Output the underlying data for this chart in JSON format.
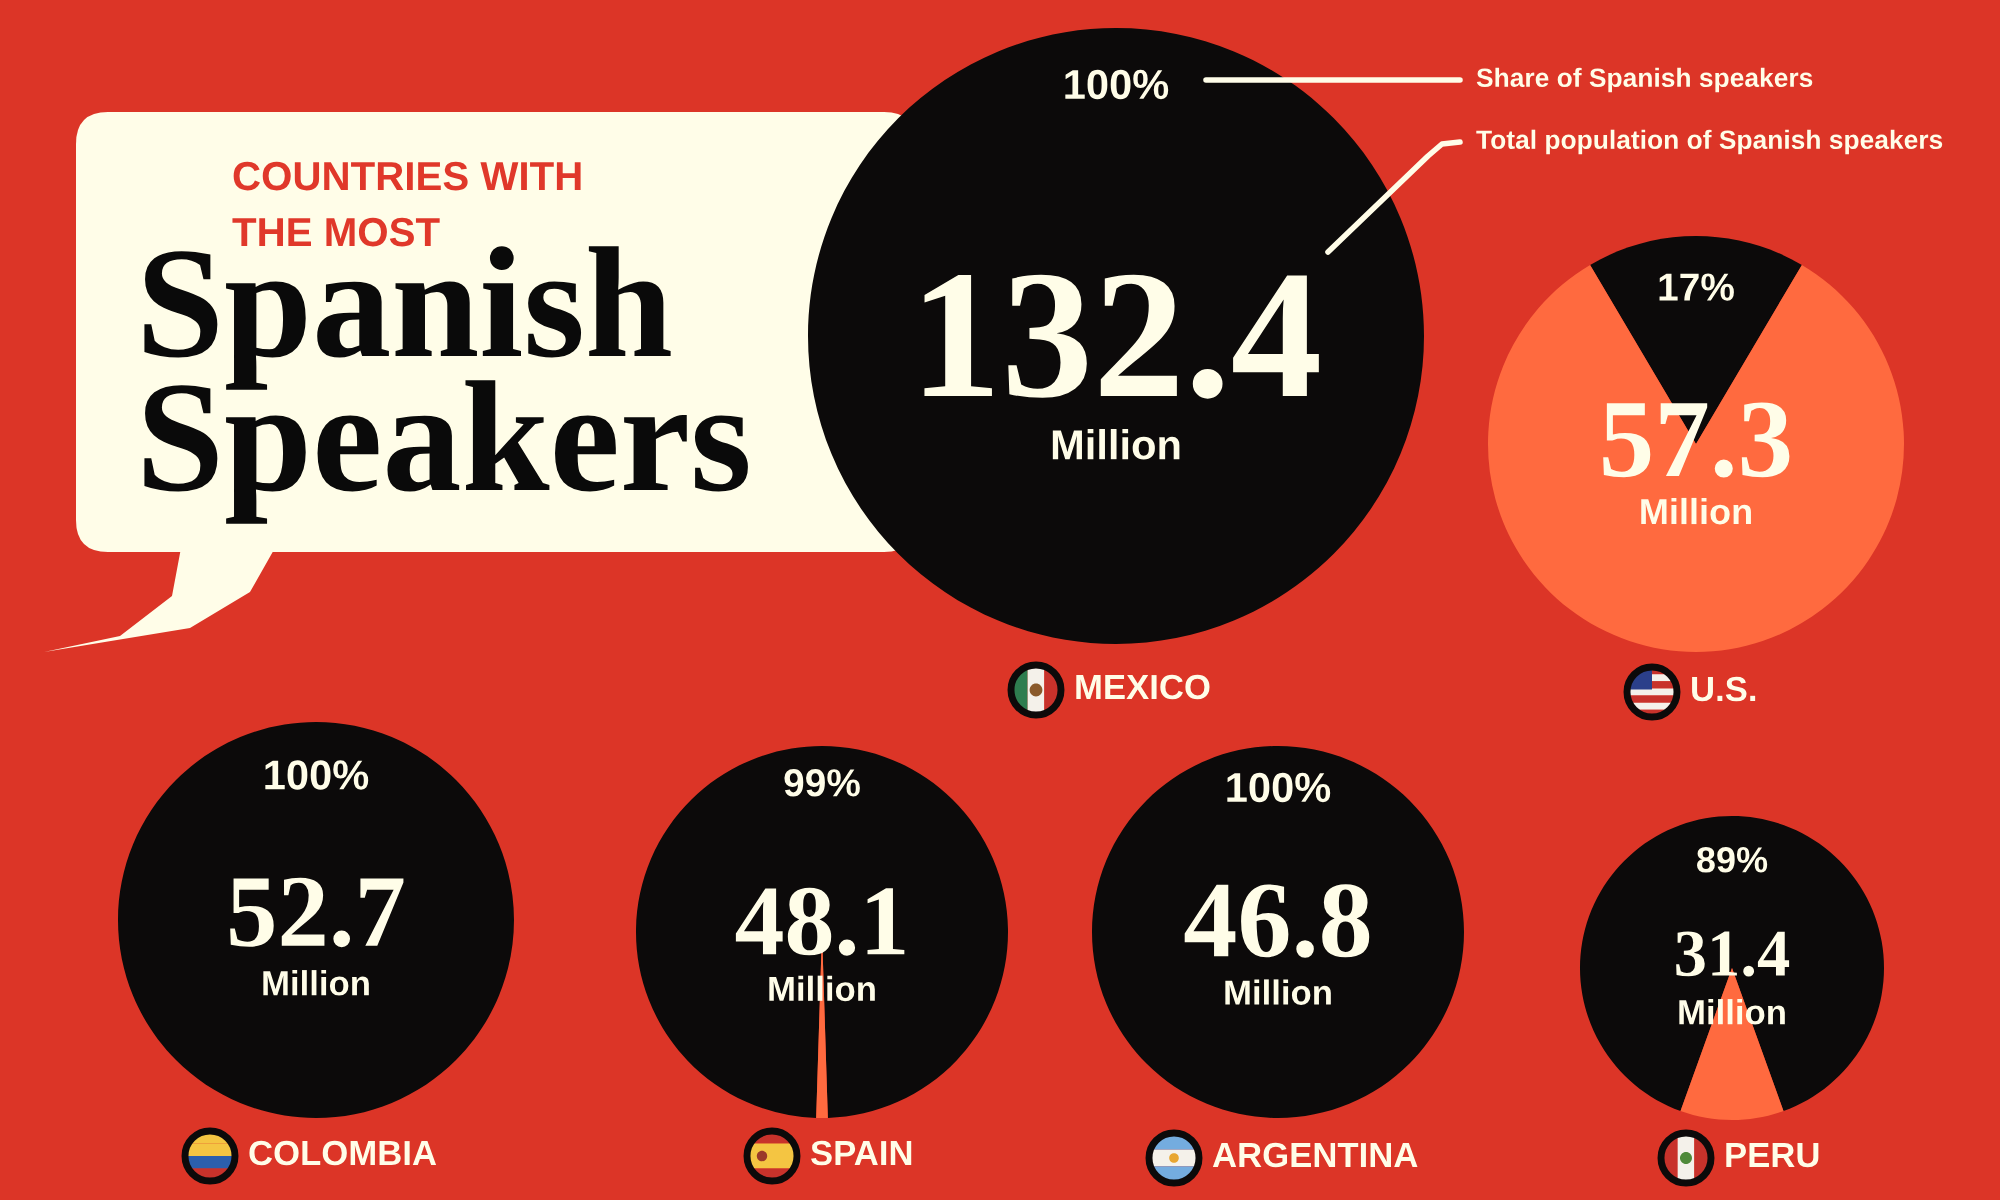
{
  "chart_data": [
    {
      "type": "other",
      "title": "COUNTRIES WITH\nTHE MOST",
      "subtitle": "Spanish\nSpeakers"
    },
    {
      "type": "pie",
      "xlabel": "MEXICO",
      "categories": [
        null
      ],
      "values": [
        100
      ],
      "colors": [
        "#0c0a0a"
      ],
      "value_labels": [
        "100%"
      ],
      "annotations": [
        "132.4",
        "Million",
        "Share of Spanish speakers",
        "Total population of Spanish speakers"
      ]
    },
    {
      "type": "pie",
      "xlabel": "U.S.",
      "categories": [
        null,
        null
      ],
      "values": [
        17,
        83
      ],
      "colors": [
        "#0c0a0a",
        "#ff6a3f"
      ],
      "value_labels": [
        "17%",
        null
      ],
      "annotations": [
        "57.3",
        "Million"
      ]
    },
    {
      "type": "pie",
      "xlabel": "COLOMBIA",
      "categories": [
        null
      ],
      "values": [
        100
      ],
      "colors": [
        "#0c0a0a"
      ],
      "value_labels": [
        "100%"
      ],
      "annotations": [
        "52.7",
        "Million"
      ]
    },
    {
      "type": "pie",
      "xlabel": "SPAIN",
      "categories": [
        null,
        null
      ],
      "values": [
        99,
        1
      ],
      "colors": [
        "#0c0a0a",
        "#ff6a3f"
      ],
      "value_labels": [
        "99%",
        null
      ],
      "annotations": [
        "48.1",
        "Million"
      ]
    },
    {
      "type": "pie",
      "xlabel": "ARGENTINA",
      "categories": [
        null
      ],
      "values": [
        100
      ],
      "colors": [
        "#0c0a0a"
      ],
      "value_labels": [
        "100%"
      ],
      "annotations": [
        "46.8",
        "Million"
      ]
    },
    {
      "type": "pie",
      "xlabel": "PERU",
      "categories": [
        null,
        null
      ],
      "values": [
        89,
        11
      ],
      "colors": [
        "#0c0a0a",
        "#ff6a3f"
      ],
      "value_labels": [
        "89%",
        null
      ],
      "annotations": [
        "31.4",
        "Million"
      ]
    }
  ]
}
